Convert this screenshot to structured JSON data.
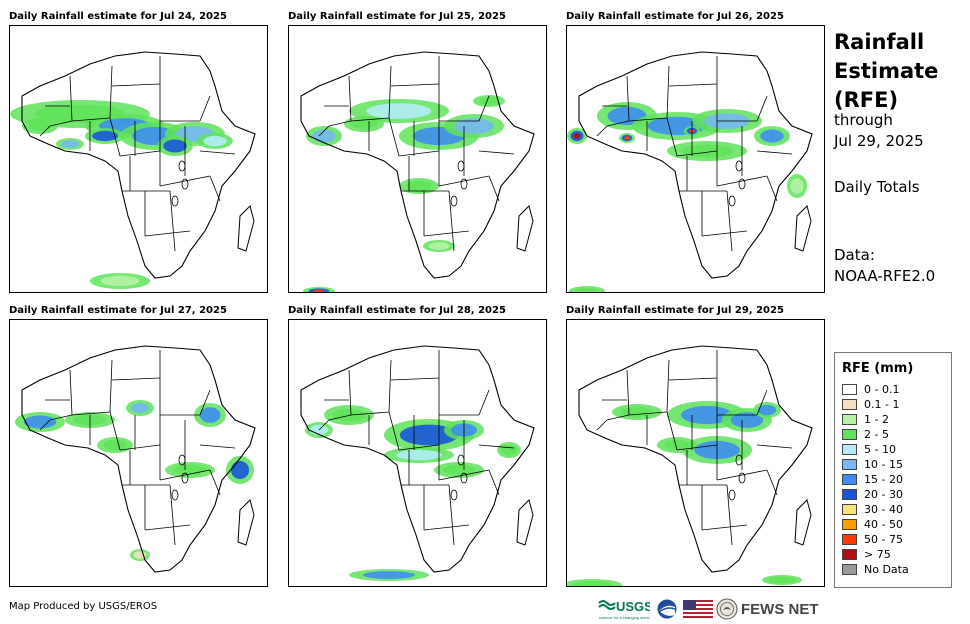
{
  "panels": [
    {
      "title": "Daily Rainfall estimate for Jul 24, 2025"
    },
    {
      "title": "Daily Rainfall estimate for Jul 25, 2025"
    },
    {
      "title": "Daily Rainfall estimate for Jul 26, 2025"
    },
    {
      "title": "Daily Rainfall estimate for Jul 27, 2025"
    },
    {
      "title": "Daily Rainfall estimate for Jul 28, 2025"
    },
    {
      "title": "Daily Rainfall estimate for Jul 29, 2025"
    }
  ],
  "side": {
    "title_line1": "Rainfall",
    "title_line2": "Estimate",
    "title_line3": "(RFE)",
    "through": "through",
    "date": "Jul 29, 2025",
    "totals": "Daily Totals",
    "data_label": "Data:",
    "data_source": "NOAA-RFE2.0"
  },
  "legend": {
    "title": "RFE (mm)",
    "items": [
      {
        "label": "0 - 0.1",
        "color": "#ffffff"
      },
      {
        "label": "0.1 - 1",
        "color": "#f2dfc0"
      },
      {
        "label": "1 - 2",
        "color": "#b6f2a6"
      },
      {
        "label": "2 - 5",
        "color": "#5fe35a"
      },
      {
        "label": "5 - 10",
        "color": "#b3ecf8"
      },
      {
        "label": "10 - 15",
        "color": "#77b7f2"
      },
      {
        "label": "15 - 20",
        "color": "#3d8ef0"
      },
      {
        "label": "20 - 30",
        "color": "#1a55d8"
      },
      {
        "label": "30 - 40",
        "color": "#f8e07a"
      },
      {
        "label": "40 - 50",
        "color": "#f5a000"
      },
      {
        "label": "50 - 75",
        "color": "#ff3a00"
      },
      {
        "label": "> 75",
        "color": "#b01010"
      },
      {
        "label": "No Data",
        "color": "#999999"
      }
    ]
  },
  "footer": {
    "credit": "Map Produced by USGS/EROS",
    "usgs": "USGS",
    "usgs_tagline": "science for a changing world",
    "fews": "FEWS NET"
  }
}
